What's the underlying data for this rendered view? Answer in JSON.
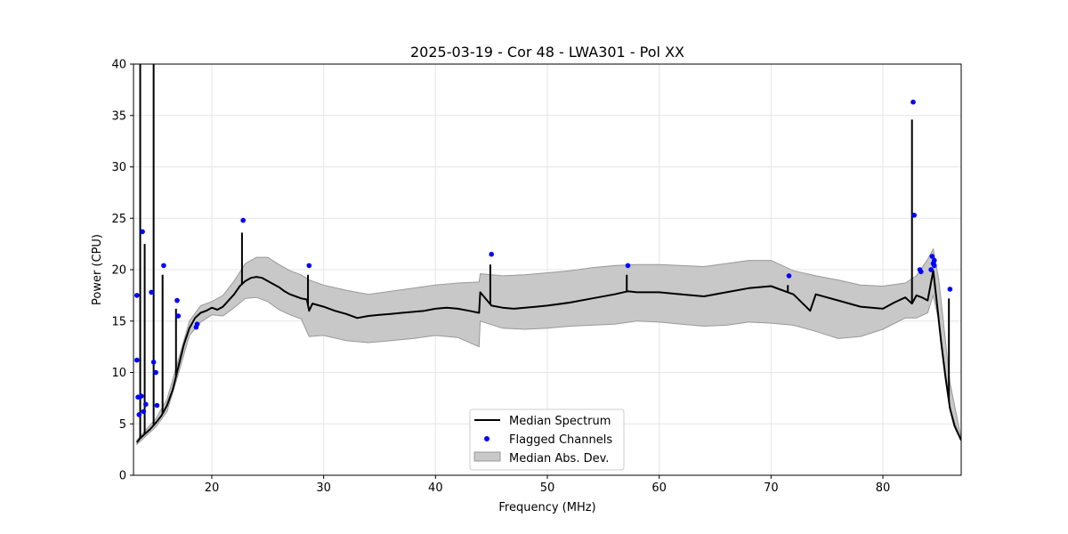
{
  "chart_data": {
    "type": "line",
    "title": "2025-03-19 - Cor 48 - LWA301 - Pol XX",
    "xlabel": "Frequency (MHz)",
    "ylabel": "Power (CPU)",
    "xlim": [
      13,
      87
    ],
    "ylim": [
      0,
      40
    ],
    "xticks": [
      20,
      30,
      40,
      50,
      60,
      70,
      80
    ],
    "yticks": [
      0,
      5,
      10,
      15,
      20,
      25,
      30,
      35,
      40
    ],
    "grid": true,
    "legend_position": "bottom-center",
    "legend": {
      "median": "Median Spectrum",
      "flagged": "Flagged Channels",
      "mad": "Median Abs. Dev."
    },
    "colors": {
      "median": "#000000",
      "flagged": "#0000ff",
      "mad_fill": "#c8c8c8",
      "mad_edge": "#999999",
      "grid": "#e6e6e6"
    },
    "median_spectrum": {
      "x": [
        13.3,
        13.6,
        14.0,
        14.5,
        15.0,
        15.5,
        16.0,
        16.5,
        17.0,
        17.5,
        18.0,
        18.5,
        19.0,
        19.5,
        20.0,
        20.5,
        21.0,
        21.5,
        22.0,
        22.5,
        23.0,
        23.5,
        24.0,
        24.5,
        25.0,
        25.5,
        26.0,
        26.5,
        27.0,
        27.5,
        28.0,
        28.5,
        28.7,
        29.0,
        30.0,
        31.0,
        32.0,
        33.0,
        34.0,
        35.0,
        36.0,
        37.0,
        38.0,
        39.0,
        40.0,
        41.0,
        42.0,
        43.0,
        43.9,
        44.0,
        45.0,
        46.0,
        47.0,
        48.0,
        49.0,
        50.0,
        52.0,
        54.0,
        56.0,
        57.2,
        58.0,
        60.0,
        62.0,
        64.0,
        66.0,
        68.0,
        70.0,
        72.0,
        73.5,
        74.0,
        76.0,
        78.0,
        80.0,
        81.0,
        82.0,
        82.6,
        83.0,
        83.5,
        84.0,
        84.5,
        84.8,
        85.2,
        85.6,
        86.0,
        86.4,
        87.0
      ],
      "y": [
        3.2,
        3.6,
        4.0,
        4.5,
        5.1,
        5.8,
        6.8,
        8.3,
        10.5,
        12.7,
        14.3,
        15.3,
        15.8,
        16.0,
        16.3,
        16.1,
        16.4,
        17.0,
        17.6,
        18.4,
        18.9,
        19.2,
        19.3,
        19.2,
        18.9,
        18.6,
        18.3,
        17.9,
        17.6,
        17.4,
        17.2,
        17.1,
        16.0,
        16.7,
        16.4,
        16.0,
        15.7,
        15.3,
        15.5,
        15.6,
        15.7,
        15.8,
        15.9,
        16.0,
        16.2,
        16.3,
        16.2,
        16.0,
        15.8,
        17.8,
        16.5,
        16.3,
        16.2,
        16.3,
        16.4,
        16.5,
        16.8,
        17.2,
        17.6,
        17.9,
        17.8,
        17.8,
        17.6,
        17.4,
        17.8,
        18.2,
        18.4,
        17.6,
        16.0,
        17.6,
        17.0,
        16.4,
        16.2,
        16.8,
        17.3,
        16.7,
        17.5,
        17.3,
        17.0,
        19.9,
        17.0,
        13.0,
        9.5,
        6.5,
        4.8,
        3.4
      ],
      "spikes": [
        {
          "x": 13.6,
          "y": 40.0
        },
        {
          "x": 14.0,
          "y": 22.5
        },
        {
          "x": 14.8,
          "y": 40.0
        },
        {
          "x": 15.6,
          "y": 19.5
        },
        {
          "x": 16.8,
          "y": 16.2
        },
        {
          "x": 22.7,
          "y": 23.6
        },
        {
          "x": 28.6,
          "y": 19.5
        },
        {
          "x": 44.9,
          "y": 20.5
        },
        {
          "x": 57.1,
          "y": 19.5
        },
        {
          "x": 71.5,
          "y": 18.5
        },
        {
          "x": 82.6,
          "y": 34.6
        },
        {
          "x": 85.9,
          "y": 17.2
        }
      ]
    },
    "mad_band": {
      "x": [
        13.3,
        14.0,
        15.0,
        16.0,
        17.0,
        18.0,
        19.0,
        20.0,
        21.0,
        22.0,
        23.0,
        24.0,
        25.0,
        26.0,
        27.0,
        28.0,
        28.7,
        30.0,
        32.0,
        34.0,
        36.0,
        38.0,
        40.0,
        42.0,
        43.9,
        44.0,
        46.0,
        48.0,
        50.0,
        52.0,
        54.0,
        56.0,
        58.0,
        60.0,
        62.0,
        64.0,
        66.0,
        68.0,
        70.0,
        72.0,
        74.0,
        76.0,
        78.0,
        80.0,
        82.0,
        83.0,
        84.0,
        84.5,
        85.0,
        86.0,
        87.0
      ],
      "upper": [
        3.4,
        4.3,
        5.5,
        7.4,
        11.2,
        15.0,
        16.5,
        16.9,
        17.5,
        18.9,
        20.6,
        21.2,
        21.2,
        20.5,
        19.9,
        19.5,
        19.0,
        18.5,
        18.0,
        17.6,
        17.9,
        18.2,
        18.5,
        18.7,
        18.8,
        19.6,
        19.4,
        19.5,
        19.7,
        19.9,
        20.2,
        20.4,
        20.5,
        20.5,
        20.4,
        20.3,
        20.6,
        20.9,
        20.9,
        19.9,
        19.4,
        19.0,
        18.5,
        18.4,
        18.7,
        19.4,
        21.0,
        22.0,
        19.0,
        9.0,
        3.6
      ],
      "lower": [
        3.0,
        3.7,
        4.7,
        6.2,
        9.8,
        13.6,
        14.9,
        15.6,
        15.5,
        16.3,
        17.2,
        17.3,
        16.9,
        16.1,
        15.6,
        15.2,
        13.5,
        13.6,
        13.1,
        12.9,
        13.1,
        13.3,
        13.6,
        13.4,
        12.5,
        15.0,
        14.3,
        14.2,
        14.3,
        14.5,
        14.6,
        14.7,
        15.0,
        14.9,
        14.7,
        14.5,
        14.6,
        14.9,
        14.8,
        14.6,
        14.0,
        13.3,
        13.5,
        14.2,
        15.3,
        15.3,
        15.8,
        17.5,
        15.0,
        6.5,
        3.3
      ]
    },
    "flagged_channels": {
      "x": [
        13.3,
        13.3,
        13.4,
        13.5,
        13.7,
        13.8,
        13.9,
        14.1,
        14.6,
        14.8,
        15.0,
        15.1,
        15.7,
        16.9,
        17.0,
        18.6,
        18.7,
        22.8,
        28.7,
        45.0,
        57.2,
        71.6,
        82.7,
        82.8,
        83.3,
        83.4,
        84.3,
        84.4,
        84.5,
        84.6,
        84.6,
        86.0
      ],
      "y": [
        17.5,
        11.2,
        7.6,
        5.9,
        7.7,
        23.7,
        6.2,
        6.9,
        17.8,
        11.0,
        10.0,
        6.8,
        20.4,
        17.0,
        15.5,
        14.4,
        14.7,
        24.8,
        20.4,
        21.5,
        20.4,
        19.4,
        36.3,
        25.3,
        20.0,
        19.8,
        20.0,
        21.3,
        20.6,
        20.9,
        20.4,
        18.1
      ]
    }
  }
}
